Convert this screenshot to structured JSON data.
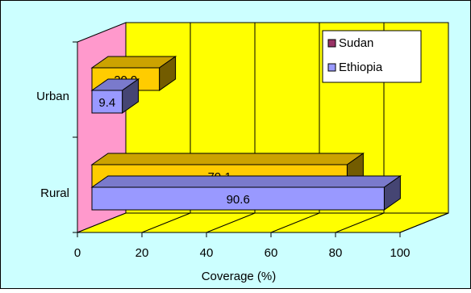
{
  "chart_data": {
    "type": "bar",
    "orientation": "horizontal",
    "style": "3d",
    "categories": [
      "Urban",
      "Rural"
    ],
    "series": [
      {
        "name": "Sudan",
        "values": [
          20.9,
          79.1
        ],
        "color": "#FFCC00",
        "legend_color": "#993366"
      },
      {
        "name": "Ethiopia",
        "values": [
          9.4,
          90.6
        ],
        "color": "#9999FF",
        "legend_color": "#9999FF"
      }
    ],
    "data_labels": true,
    "xlabel": "Coverage (%)",
    "ylabel": "",
    "xlim": [
      0,
      100
    ],
    "x_ticks": [
      "0",
      "20",
      "40",
      "60",
      "80",
      "100"
    ],
    "grid": true,
    "legend_position": "top-right",
    "colors": {
      "background": "#CCFFFF",
      "back_wall": "#FFFF00",
      "side_wall": "#FF99CC",
      "floor": "#FFFF00"
    }
  }
}
